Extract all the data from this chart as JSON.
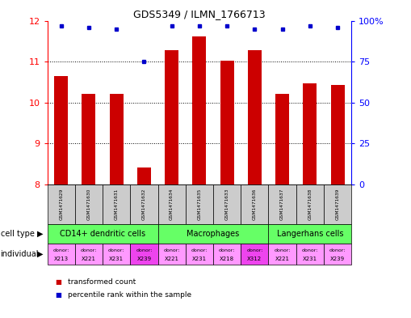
{
  "title": "GDS5349 / ILMN_1766713",
  "samples": [
    "GSM1471629",
    "GSM1471630",
    "GSM1471631",
    "GSM1471632",
    "GSM1471634",
    "GSM1471635",
    "GSM1471633",
    "GSM1471636",
    "GSM1471637",
    "GSM1471638",
    "GSM1471639"
  ],
  "transformed_counts": [
    10.65,
    10.22,
    10.22,
    8.42,
    11.27,
    11.62,
    11.02,
    11.28,
    10.22,
    10.47,
    10.42
  ],
  "percentile_ranks": [
    97,
    96,
    95,
    75,
    97,
    97,
    97,
    95,
    95,
    97,
    96
  ],
  "ylim_left": [
    8,
    12
  ],
  "ylim_right": [
    0,
    100
  ],
  "yticks_left": [
    8,
    9,
    10,
    11,
    12
  ],
  "yticks_right": [
    0,
    25,
    50,
    75,
    100
  ],
  "cell_types": [
    {
      "label": "CD14+ dendritic cells",
      "start": 0,
      "end": 4
    },
    {
      "label": "Macrophages",
      "start": 4,
      "end": 8
    },
    {
      "label": "Langerhans cells",
      "start": 8,
      "end": 11
    }
  ],
  "individuals": [
    "X213",
    "X221",
    "X231",
    "X239",
    "X221",
    "X231",
    "X218",
    "X312",
    "X221",
    "X231",
    "X239"
  ],
  "ind_pink_dark": [
    false,
    false,
    false,
    true,
    false,
    false,
    false,
    true,
    false,
    false,
    false
  ],
  "bar_color": "#cc0000",
  "dot_color": "#0000cc",
  "background_color": "#ffffff",
  "cell_type_bg": "#66ff66",
  "individual_bg_light": "#ff99ff",
  "individual_bg_dark": "#ee44ee",
  "sample_bg": "#cccccc",
  "bar_width": 0.5
}
